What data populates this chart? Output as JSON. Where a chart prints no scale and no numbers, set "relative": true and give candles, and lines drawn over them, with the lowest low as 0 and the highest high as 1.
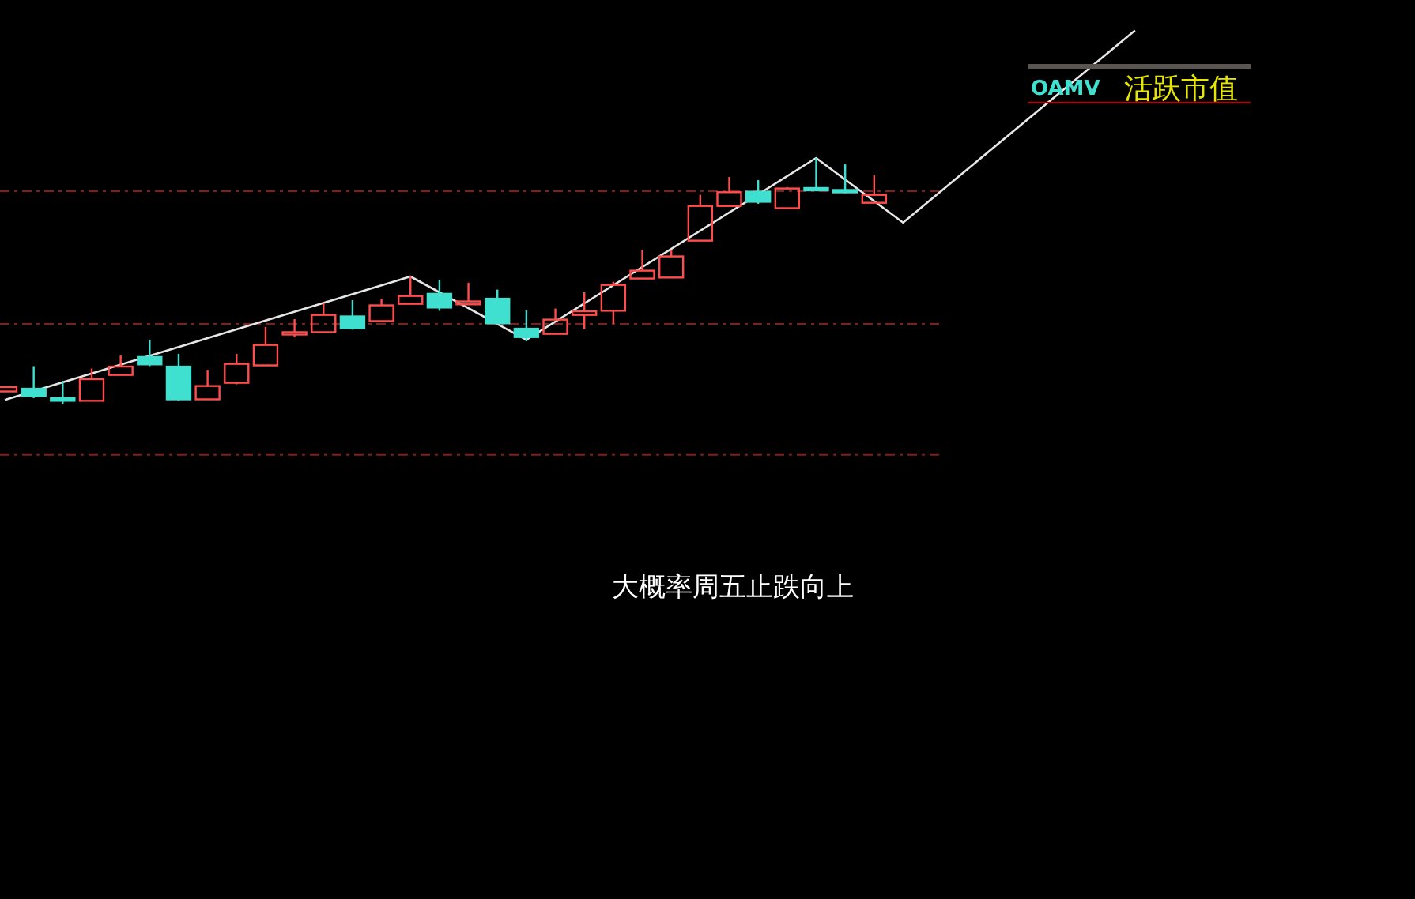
{
  "chart_data": {
    "type": "candlestick",
    "title": "OAMV",
    "subtitle": "活跃市值",
    "annotations": [
      "大概率周五止跌向上"
    ],
    "relative": true,
    "categories": [
      null,
      null,
      null,
      null,
      null,
      null,
      null,
      null,
      null,
      null,
      null,
      null,
      null,
      null,
      null,
      null,
      null,
      null,
      null,
      null,
      null,
      null,
      null,
      null,
      null,
      null,
      null,
      null,
      null,
      null,
      null,
      null,
      null,
      null,
      null,
      null,
      null,
      null,
      null,
      null
    ],
    "series": [
      {
        "ohlc": [
          [
            0.051,
            0.069,
            0.049,
            0.069
          ],
          [
            0.062,
            0.154,
            0.024,
            0.032
          ],
          [
            0.024,
            0.094,
            0,
            0.013
          ],
          [
            0.013,
            0.144,
            0.013,
            0.101
          ],
          [
            0.118,
            0.197,
            0.118,
            0.152
          ],
          [
            0.191,
            0.261,
            0.154,
            0.161
          ],
          [
            0.152,
            0.204,
            0.013,
            0.019
          ],
          [
            0.019,
            0.139,
            0.019,
            0.073
          ],
          [
            0.086,
            0.204,
            0.08,
            0.163
          ],
          [
            0.157,
            0.313,
            0.157,
            0.24
          ],
          [
            0.283,
            0.345,
            0.272,
            0.292
          ],
          [
            0.292,
            0.411,
            0.292,
            0.362
          ],
          [
            0.356,
            0.422,
            0.302,
            0.308
          ],
          [
            0.337,
            0.428,
            0.337,
            0.401
          ],
          [
            0.407,
            0.518,
            0.407,
            0.439
          ],
          [
            0.448,
            0.504,
            0.379,
            0.392
          ],
          [
            0.405,
            0.493,
            0.405,
            0.417
          ],
          [
            0.428,
            0.465,
            0.328,
            0.328
          ],
          [
            0.306,
            0.383,
            0.255,
            0.272
          ],
          [
            0.285,
            0.388,
            0.285,
            0.343
          ],
          [
            0.362,
            0.454,
            0.304,
            0.377
          ],
          [
            0.379,
            0.497,
            0.326,
            0.484
          ],
          [
            0.51,
            0.626,
            0.51,
            0.542
          ],
          [
            0.514,
            0.626,
            0.514,
            0.6
          ],
          [
            0.664,
            0.85,
            0.664,
            0.805
          ],
          [
            0.805,
            0.923,
            0.805,
            0.861
          ],
          [
            0.863,
            0.91,
            0.814,
            0.822
          ],
          [
            0.796,
            0.882,
            0.796,
            0.876
          ],
          [
            0.878,
            1,
            0.873,
            0.873
          ],
          [
            0.87,
            0.974,
            0.857,
            0.865
          ],
          [
            0.818,
            0.929,
            0.818,
            0.85
          ],
          null,
          null,
          null,
          null,
          null,
          null,
          null,
          null,
          null
        ],
        "colors": [
          "#ff4d4d",
          "#40e0d0",
          "#40e0d0",
          "#ff4d4d",
          "#ff4d4d",
          "#40e0d0",
          "#40e0d0",
          "#ff4d4d",
          "#ff4d4d",
          "#ff4d4d",
          "#ff4d4d",
          "#ff4d4d",
          "#40e0d0",
          "#ff4d4d",
          "#ff4d4d",
          "#40e0d0",
          "#ff4d4d",
          "#40e0d0",
          "#40e0d0",
          "#ff4d4d",
          "#ff4d4d",
          "#ff4d4d",
          "#ff4d4d",
          "#ff4d4d",
          "#ff4d4d",
          "#ff4d4d",
          "#40e0d0",
          "#ff4d4d",
          "#40e0d0",
          "#40e0d0",
          "#ff4d4d",
          null,
          null,
          null,
          null,
          null,
          null,
          null,
          null,
          null
        ]
      },
      {
        "type": "line",
        "color": "#e6e6e6",
        "values": [
          0.017,
          null,
          null,
          null,
          null,
          null,
          null,
          null,
          null,
          null,
          null,
          null,
          null,
          null,
          0.518,
          null,
          null,
          null,
          0.261,
          null,
          null,
          null,
          null,
          null,
          null,
          null,
          null,
          null,
          1,
          null,
          null,
          0.737,
          null,
          null,
          null,
          null,
          null,
          null,
          null,
          1.519
        ]
      }
    ],
    "ref_lines": [
      {
        "axis": "y",
        "value": 0.865,
        "color": "#8b1a1a",
        "line_style": "dashed"
      },
      {
        "axis": "y",
        "value": 0.326,
        "color": "#8b1a1a",
        "line_style": "dashed"
      },
      {
        "axis": "y",
        "value": -0.207,
        "color": "#8b1a1a",
        "line_style": "dashed"
      }
    ]
  }
}
